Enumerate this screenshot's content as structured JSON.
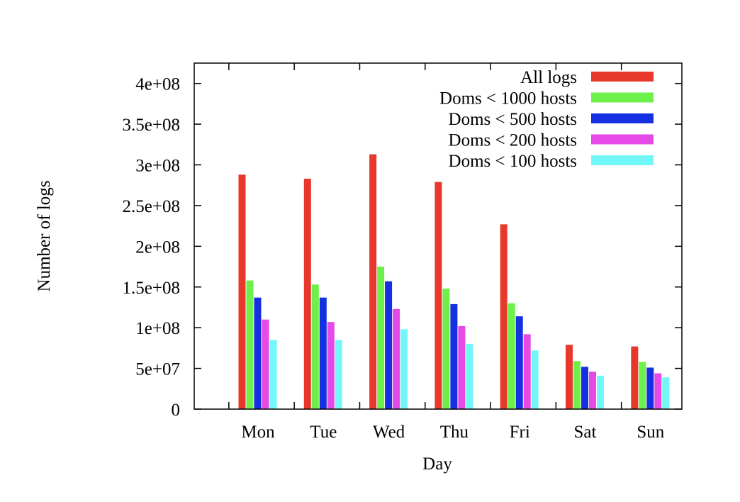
{
  "chart_data": {
    "type": "bar",
    "xlabel": "Day",
    "ylabel": "Number of logs",
    "categories": [
      "Mon",
      "Tue",
      "Wed",
      "Thu",
      "Fri",
      "Sat",
      "Sun"
    ],
    "ylim": [
      0,
      425000000
    ],
    "yticks": [
      {
        "value": 0,
        "label": "0"
      },
      {
        "value": 50000000,
        "label": "5e+07"
      },
      {
        "value": 100000000,
        "label": "1e+08"
      },
      {
        "value": 150000000,
        "label": "1.5e+08"
      },
      {
        "value": 200000000,
        "label": "2e+08"
      },
      {
        "value": 250000000,
        "label": "2.5e+08"
      },
      {
        "value": 300000000,
        "label": "3e+08"
      },
      {
        "value": 350000000,
        "label": "3.5e+08"
      },
      {
        "value": 400000000,
        "label": "4e+08"
      }
    ],
    "grid": false,
    "legend_position": "top-right",
    "series": [
      {
        "name": "All logs",
        "color": "#e8382b",
        "values": [
          288000000,
          283000000,
          313000000,
          279000000,
          227000000,
          79000000,
          77000000
        ]
      },
      {
        "name": "Doms < 1000 hosts",
        "color": "#6ef04a",
        "values": [
          158000000,
          153000000,
          175000000,
          148000000,
          130000000,
          59000000,
          58000000
        ]
      },
      {
        "name": "Doms < 500 hosts",
        "color": "#1430e0",
        "values": [
          137000000,
          137000000,
          157000000,
          129000000,
          114000000,
          52000000,
          51000000
        ]
      },
      {
        "name": "Doms < 200 hosts",
        "color": "#e64ae6",
        "values": [
          110000000,
          107000000,
          123000000,
          102000000,
          92000000,
          46000000,
          44000000
        ]
      },
      {
        "name": "Doms < 100 hosts",
        "color": "#72f7f9",
        "values": [
          85000000,
          85000000,
          98000000,
          80000000,
          72000000,
          41000000,
          39000000
        ]
      }
    ]
  }
}
